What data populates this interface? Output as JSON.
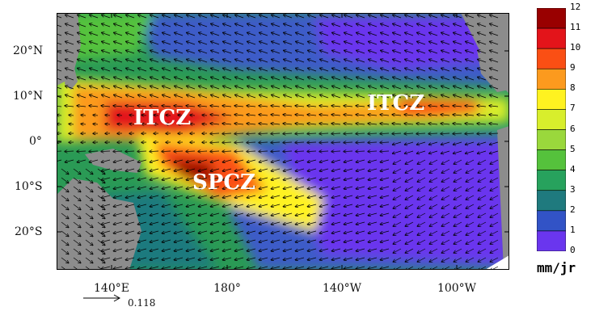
{
  "map": {
    "lat_labels": [
      "20°N",
      "10°N",
      "0°",
      "10°S",
      "20°S"
    ],
    "lon_labels": [
      "140°E",
      "180°",
      "140°W",
      "100°W"
    ],
    "region_labels": [
      "ITCZ",
      "ITCZ",
      "SPCZ"
    ],
    "reference_vector": "0.118"
  },
  "colorbar": {
    "ticks": [
      "12",
      "11",
      "10",
      "9",
      "8",
      "7",
      "6",
      "5",
      "4",
      "3",
      "2",
      "1",
      "0"
    ],
    "unit": "mm/jr",
    "colors": [
      "#990000",
      "#e3141a",
      "#fa4f14",
      "#fc9a1e",
      "#fff220",
      "#d8ee2c",
      "#9ad83c",
      "#55c23c",
      "#27a25d",
      "#1f7a7e",
      "#3253c6",
      "#6a36ee"
    ]
  }
}
